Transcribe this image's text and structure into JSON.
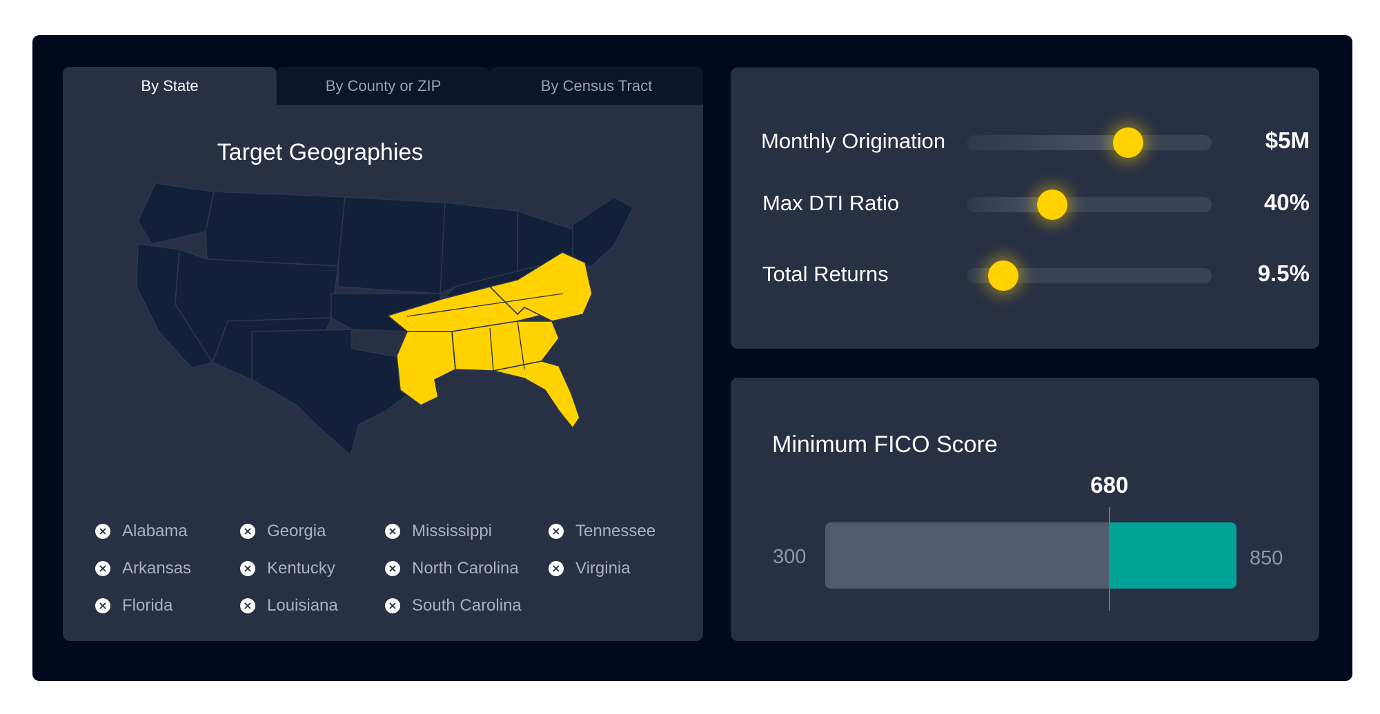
{
  "tabs": [
    {
      "label": "By State",
      "active": true
    },
    {
      "label": "By County or ZIP",
      "active": false
    },
    {
      "label": "By Census Tract",
      "active": false
    }
  ],
  "geographies": {
    "title": "Target Geographies",
    "selected_color": "#ffd200",
    "unselected_color": "#13203a",
    "states": [
      [
        "Alabama",
        "Georgia",
        "Mississippi",
        "Tennessee"
      ],
      [
        "Arkansas",
        "Kentucky",
        "North Carolina",
        "Virginia"
      ],
      [
        "Florida",
        "Louisiana",
        "South Carolina"
      ]
    ],
    "remove_icon": "close-circle-icon"
  },
  "sliders": [
    {
      "label": "Monthly Origination",
      "value": "$5M",
      "level": 0.66
    },
    {
      "label": "Max DTI Ratio",
      "value": "40%",
      "level": 0.35
    },
    {
      "label": "Total Returns",
      "value": "9.5%",
      "level": 0.15
    }
  ],
  "fico": {
    "title": "Minimum FICO Score",
    "value": "680",
    "min": "300",
    "max": "850",
    "score": 680,
    "range": [
      300,
      850
    ],
    "accent": "#00a396"
  }
}
